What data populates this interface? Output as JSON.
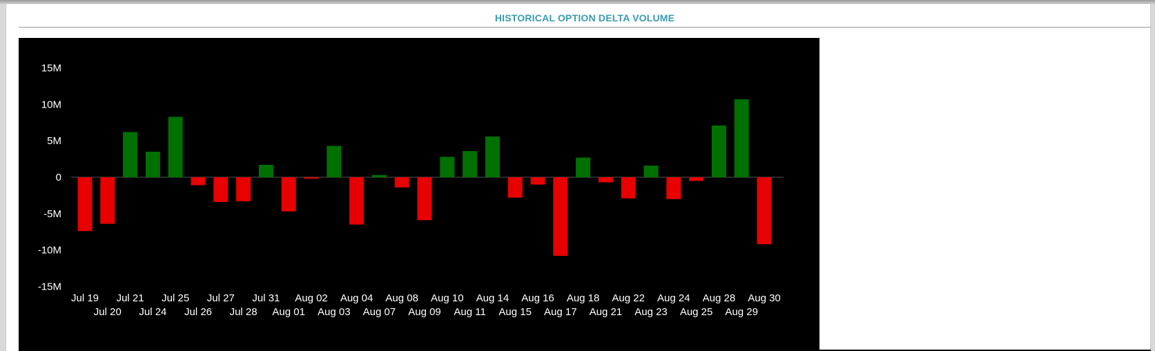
{
  "panel": {
    "title": "HISTORICAL OPTION DELTA VOLUME"
  },
  "colors": {
    "positive": "#007000",
    "negative": "#e80000",
    "background": "#000000",
    "text": "#ffffff",
    "title": "#3a9ab0"
  },
  "chart_data": {
    "type": "bar",
    "title": "",
    "xlabel": "",
    "ylabel": "",
    "ylim": [
      -15000000,
      15000000
    ],
    "yticks": [
      15000000,
      10000000,
      5000000,
      0,
      -5000000,
      -10000000,
      -15000000
    ],
    "ytick_labels": [
      "15M",
      "10M",
      "5M",
      "0",
      "-5M",
      "-10M",
      "-15M"
    ],
    "grid": false,
    "legend": "none",
    "categories": [
      "Jul 19",
      "Jul 20",
      "Jul 21",
      "Jul 24",
      "Jul 25",
      "Jul 26",
      "Jul 27",
      "Jul 28",
      "Jul 31",
      "Aug 01",
      "Aug 02",
      "Aug 03",
      "Aug 04",
      "Aug 07",
      "Aug 08",
      "Aug 09",
      "Aug 10",
      "Aug 11",
      "Aug 14",
      "Aug 15",
      "Aug 16",
      "Aug 17",
      "Aug 18",
      "Aug 21",
      "Aug 22",
      "Aug 23",
      "Aug 24",
      "Aug 25",
      "Aug 28",
      "Aug 29",
      "Aug 30"
    ],
    "values": [
      -7400000,
      -6400000,
      6200000,
      3500000,
      8300000,
      -1100000,
      -3400000,
      -3300000,
      1700000,
      -4700000,
      -200000,
      4300000,
      -6500000,
      300000,
      -1400000,
      -5900000,
      2800000,
      3600000,
      5600000,
      -2800000,
      -1000000,
      -10800000,
      2700000,
      -700000,
      -2900000,
      1600000,
      -3000000,
      -500000,
      7100000,
      10700000,
      -9200000
    ]
  }
}
